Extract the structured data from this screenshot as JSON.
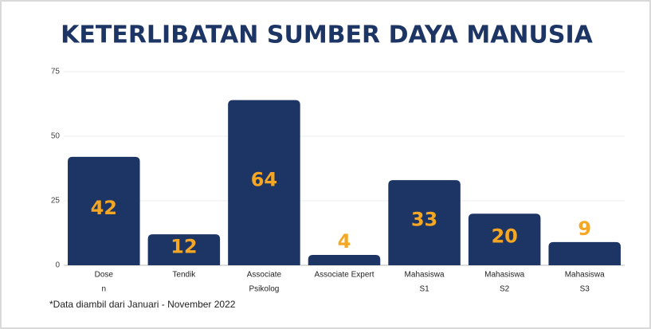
{
  "chart_data": {
    "type": "bar",
    "title": "KETERLIBATAN SUMBER DAYA MANUSIA",
    "footnote": "*Data diambil dari Januari - November 2022",
    "categories": [
      [
        "Dose",
        "n"
      ],
      [
        "Tendik"
      ],
      [
        "Associate",
        "Psikolog"
      ],
      [
        "Associate Expert"
      ],
      [
        "Mahasiswa",
        "S1"
      ],
      [
        "Mahasiswa",
        "S2"
      ],
      [
        "Mahasiswa",
        "S3"
      ]
    ],
    "values": [
      42,
      12,
      64,
      4,
      33,
      20,
      9
    ],
    "color": "#1c3564",
    "label_color": "#f5a623",
    "ylim": [
      0,
      75
    ],
    "yticks": [
      0,
      25,
      50,
      75
    ],
    "grid": true
  }
}
